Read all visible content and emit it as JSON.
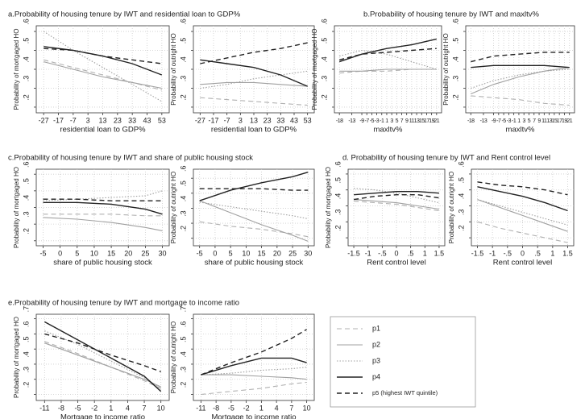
{
  "legend": {
    "series": [
      {
        "name": "p1",
        "color": "#b0b0b0",
        "style": "dashed"
      },
      {
        "name": "p2",
        "color": "#a0a0a0",
        "style": "solid"
      },
      {
        "name": "p3",
        "color": "#a0a0a0",
        "style": "dotted"
      },
      {
        "name": "p4",
        "color": "#222222",
        "style": "solid"
      },
      {
        "name": "p5 (highest IWT quintile)",
        "color": "#222222",
        "style": "dashed"
      }
    ]
  },
  "chart_data": [
    {
      "type": "line",
      "title": "a.Probability of housing tenure by IWT and residential loan to GDP%",
      "xlabel": "residential loan to GDP%",
      "grid": true,
      "x": [
        -27,
        -7,
        13,
        33,
        53
      ],
      "xlim": [
        -32,
        58
      ],
      "xticks": [
        -27,
        -17,
        -7,
        3,
        13,
        23,
        33,
        43,
        53
      ],
      "subplots": [
        {
          "ylabel": "Probability of mortgaged HO",
          "ylim": [
            0.17,
            0.63
          ],
          "yticks": [
            {
              "value": 0.2,
              "label": ".2"
            },
            {
              "value": 0.3,
              "label": ".3"
            },
            {
              "value": 0.4,
              "label": ".4"
            },
            {
              "value": 0.5,
              "label": ".5"
            },
            {
              "value": 0.6,
              "label": ".6"
            }
          ],
          "series": [
            {
              "values": [
                0.45,
                0.41,
                0.37,
                0.33,
                0.29
              ]
            },
            {
              "values": [
                0.44,
                0.4,
                0.36,
                0.33,
                0.3
              ]
            },
            {
              "values": [
                0.6,
                0.5,
                0.41,
                0.32,
                0.23
              ]
            },
            {
              "values": [
                0.52,
                0.5,
                0.47,
                0.43,
                0.37
              ]
            },
            {
              "values": [
                0.51,
                0.5,
                0.47,
                0.45,
                0.43
              ]
            }
          ]
        },
        {
          "ylabel": "Probability of outright HO",
          "ylim": [
            0.17,
            0.63
          ],
          "yticks": [
            {
              "value": 0.2,
              "label": ".2"
            },
            {
              "value": 0.3,
              "label": ".3"
            },
            {
              "value": 0.4,
              "label": ".4"
            },
            {
              "value": 0.5,
              "label": ".5"
            },
            {
              "value": 0.6,
              "label": ".6"
            }
          ],
          "series": [
            {
              "values": [
                0.25,
                0.24,
                0.23,
                0.22,
                0.21
              ]
            },
            {
              "values": [
                0.32,
                0.33,
                0.33,
                0.32,
                0.31
              ]
            },
            {
              "values": [
                0.3,
                0.32,
                0.35,
                0.37,
                0.39
              ]
            },
            {
              "values": [
                0.45,
                0.43,
                0.41,
                0.37,
                0.31
              ]
            },
            {
              "values": [
                0.43,
                0.46,
                0.49,
                0.51,
                0.54
              ]
            }
          ]
        }
      ]
    },
    {
      "type": "line",
      "title": "b.Probability of housing tenure by IWT and maxltv%",
      "xlabel": "maxltv%",
      "grid": true,
      "x": [
        -18,
        -9,
        1,
        11,
        21
      ],
      "xlim": [
        -20,
        23
      ],
      "xticks": [
        -18,
        -13,
        -9,
        -7,
        -5,
        -3,
        -1,
        1,
        3,
        5,
        7,
        9,
        11,
        13,
        15,
        17,
        19,
        21
      ],
      "subplots": [
        {
          "ylabel": "Probability of mortgaged HO",
          "ylim": [
            0.17,
            0.63
          ],
          "yticks": [
            {
              "value": 0.2,
              "label": ".2"
            },
            {
              "value": 0.3,
              "label": ".3"
            },
            {
              "value": 0.4,
              "label": ".4"
            },
            {
              "value": 0.5,
              "label": ".5"
            },
            {
              "value": 0.6,
              "label": ".6"
            }
          ],
          "series": [
            {
              "values": [
                0.38,
                0.39,
                0.39,
                0.4,
                0.4
              ]
            },
            {
              "values": [
                0.39,
                0.39,
                0.4,
                0.4,
                0.4
              ]
            },
            {
              "values": [
                0.47,
                0.5,
                0.48,
                0.44,
                0.4
              ]
            },
            {
              "values": [
                0.44,
                0.48,
                0.51,
                0.53,
                0.56
              ]
            },
            {
              "values": [
                0.45,
                0.48,
                0.49,
                0.5,
                0.51
              ]
            }
          ]
        },
        {
          "ylabel": "Probability of outright HO",
          "ylim": [
            0.17,
            0.63
          ],
          "yticks": [
            {
              "value": 0.2,
              "label": ".2"
            },
            {
              "value": 0.3,
              "label": ".3"
            },
            {
              "value": 0.4,
              "label": ".4"
            },
            {
              "value": 0.5,
              "label": ".5"
            },
            {
              "value": 0.6,
              "label": ".6"
            }
          ],
          "series": [
            {
              "values": [
                0.26,
                0.25,
                0.24,
                0.22,
                0.21
              ]
            },
            {
              "values": [
                0.27,
                0.32,
                0.36,
                0.39,
                0.41
              ]
            },
            {
              "values": [
                0.3,
                0.34,
                0.37,
                0.39,
                0.4
              ]
            },
            {
              "values": [
                0.41,
                0.42,
                0.42,
                0.42,
                0.41
              ]
            },
            {
              "values": [
                0.44,
                0.47,
                0.48,
                0.49,
                0.49
              ]
            }
          ]
        }
      ]
    },
    {
      "type": "line",
      "title": "c.Probability of housing tenure by IWT and share of public housing stock",
      "xlabel": "share of public housing stock",
      "grid": true,
      "x": [
        -5,
        5,
        15,
        25,
        30
      ],
      "xlim": [
        -7,
        32
      ],
      "xticks": [
        -5,
        0,
        5,
        10,
        15,
        20,
        25,
        30
      ],
      "subplots": [
        {
          "ylabel": "Probability of mortgaged HO",
          "ylim": [
            0.17,
            0.63
          ],
          "yticks": [
            {
              "value": 0.2,
              "label": ".2"
            },
            {
              "value": 0.3,
              "label": ".3"
            },
            {
              "value": 0.4,
              "label": ".4"
            },
            {
              "value": 0.5,
              "label": ".5"
            },
            {
              "value": 0.6,
              "label": ".6"
            }
          ],
          "series": [
            {
              "values": [
                0.36,
                0.36,
                0.36,
                0.35,
                0.35
              ]
            },
            {
              "values": [
                0.34,
                0.33,
                0.31,
                0.28,
                0.26
              ]
            },
            {
              "values": [
                0.44,
                0.45,
                0.46,
                0.47,
                0.5
              ]
            },
            {
              "values": [
                0.43,
                0.43,
                0.42,
                0.39,
                0.36
              ]
            },
            {
              "values": [
                0.45,
                0.45,
                0.44,
                0.44,
                0.44
              ]
            }
          ]
        },
        {
          "ylabel": "Probability of outright HO",
          "ylim": [
            0.15,
            0.66
          ],
          "yticks": [
            {
              "value": 0.2,
              "label": ".2"
            },
            {
              "value": 0.3,
              "label": ".3"
            },
            {
              "value": 0.4,
              "label": ".4"
            },
            {
              "value": 0.5,
              "label": ".5"
            },
            {
              "value": 0.6,
              "label": ".6"
            }
          ],
          "series": [
            {
              "values": [
                0.31,
                0.28,
                0.26,
                0.23,
                0.21
              ]
            },
            {
              "values": [
                0.45,
                0.37,
                0.29,
                0.22,
                0.18
              ]
            },
            {
              "values": [
                0.44,
                0.41,
                0.38,
                0.35,
                0.33
              ]
            },
            {
              "values": [
                0.45,
                0.52,
                0.57,
                0.61,
                0.64
              ]
            },
            {
              "values": [
                0.53,
                0.53,
                0.53,
                0.52,
                0.52
              ]
            }
          ]
        }
      ]
    },
    {
      "type": "line",
      "title": "d. Probability of housing tenure by IWT and Rent control level",
      "xlabel": "Rent control level",
      "grid": true,
      "x": [
        -1.5,
        -0.75,
        0,
        0.75,
        1.5
      ],
      "xlim": [
        -1.7,
        1.7
      ],
      "xticks": [
        -1.5,
        -1,
        {
          "value": -0.5,
          "label": "-.5"
        },
        0,
        {
          "value": 0.5,
          "label": ".5"
        },
        1,
        1.5
      ],
      "subplots": [
        {
          "ylabel": "Probability of mortgaged HO",
          "ylim": [
            0.15,
            0.63
          ],
          "yticks": [
            {
              "value": 0.2,
              "label": ".2"
            },
            {
              "value": 0.3,
              "label": ".3"
            },
            {
              "value": 0.4,
              "label": ".4"
            },
            {
              "value": 0.5,
              "label": ".5"
            },
            {
              "value": 0.6,
              "label": ".6"
            }
          ],
          "series": [
            {
              "values": [
                0.43,
                0.42,
                0.41,
                0.39,
                0.37
              ]
            },
            {
              "values": [
                0.44,
                0.43,
                0.42,
                0.4,
                0.38
              ]
            },
            {
              "values": [
                0.51,
                0.5,
                0.48,
                0.45,
                0.42
              ]
            },
            {
              "values": [
                0.47,
                0.48,
                0.49,
                0.49,
                0.48
              ]
            },
            {
              "values": [
                0.44,
                0.46,
                0.47,
                0.47,
                0.45
              ]
            }
          ]
        },
        {
          "ylabel": "Probability of outright HO",
          "ylim": [
            0.15,
            0.63
          ],
          "yticks": [
            {
              "value": 0.2,
              "label": ".2"
            },
            {
              "value": 0.3,
              "label": ".3"
            },
            {
              "value": 0.4,
              "label": ".4"
            },
            {
              "value": 0.5,
              "label": ".5"
            },
            {
              "value": 0.6,
              "label": ".6"
            }
          ],
          "series": [
            {
              "values": [
                0.3,
                0.26,
                0.23,
                0.2,
                0.17
              ]
            },
            {
              "values": [
                0.44,
                0.39,
                0.34,
                0.29,
                0.24
              ]
            },
            {
              "values": [
                0.44,
                0.4,
                0.36,
                0.32,
                0.28
              ]
            },
            {
              "values": [
                0.52,
                0.49,
                0.46,
                0.42,
                0.37
              ]
            },
            {
              "values": [
                0.55,
                0.53,
                0.52,
                0.5,
                0.47
              ]
            }
          ]
        }
      ]
    },
    {
      "type": "line",
      "title": "e.Probability of housing tenure by IWT and mortgage to income ratio",
      "xlabel": "Mortgage to income ratio",
      "grid": true,
      "x": [
        -11,
        -5,
        1,
        7,
        10
      ],
      "xlim": [
        -12.5,
        11.5
      ],
      "xticks": [
        -11,
        -8,
        -5,
        -2,
        1,
        4,
        7,
        10
      ],
      "subplots": [
        {
          "ylabel": "Probability of mortgaged HO",
          "ylim": [
            0.16,
            0.73
          ],
          "yticks": [
            {
              "value": 0.2,
              "label": ".2"
            },
            {
              "value": 0.3,
              "label": ".3"
            },
            {
              "value": 0.4,
              "label": ".4"
            },
            {
              "value": 0.5,
              "label": ".5"
            },
            {
              "value": 0.6,
              "label": ".6"
            },
            {
              "value": 0.7,
              "label": ".7"
            }
          ],
          "series": [
            {
              "values": [
                0.55,
                0.47,
                0.38,
                0.29,
                0.24
              ]
            },
            {
              "values": [
                0.54,
                0.46,
                0.38,
                0.3,
                0.25
              ]
            },
            {
              "values": [
                0.62,
                0.53,
                0.42,
                0.31,
                0.24
              ]
            },
            {
              "values": [
                0.68,
                0.56,
                0.44,
                0.32,
                0.22
              ]
            },
            {
              "values": [
                0.6,
                0.54,
                0.46,
                0.39,
                0.35
              ]
            }
          ]
        },
        {
          "ylabel": "Probability of outright HO",
          "ylim": [
            0.16,
            0.73
          ],
          "yticks": [
            {
              "value": 0.2,
              "label": ".2"
            },
            {
              "value": 0.3,
              "label": ".3"
            },
            {
              "value": 0.4,
              "label": ".4"
            },
            {
              "value": 0.5,
              "label": ".5"
            },
            {
              "value": 0.6,
              "label": ".6"
            },
            {
              "value": 0.7,
              "label": ".7"
            }
          ],
          "series": [
            {
              "values": [
                0.2,
                0.22,
                0.24,
                0.27,
                0.28
              ]
            },
            {
              "values": [
                0.33,
                0.33,
                0.32,
                0.31,
                0.3
              ]
            },
            {
              "values": [
                0.33,
                0.34,
                0.36,
                0.37,
                0.38
              ]
            },
            {
              "values": [
                0.33,
                0.39,
                0.44,
                0.44,
                0.41
              ]
            },
            {
              "values": [
                0.33,
                0.41,
                0.48,
                0.57,
                0.63
              ]
            }
          ]
        }
      ]
    }
  ]
}
